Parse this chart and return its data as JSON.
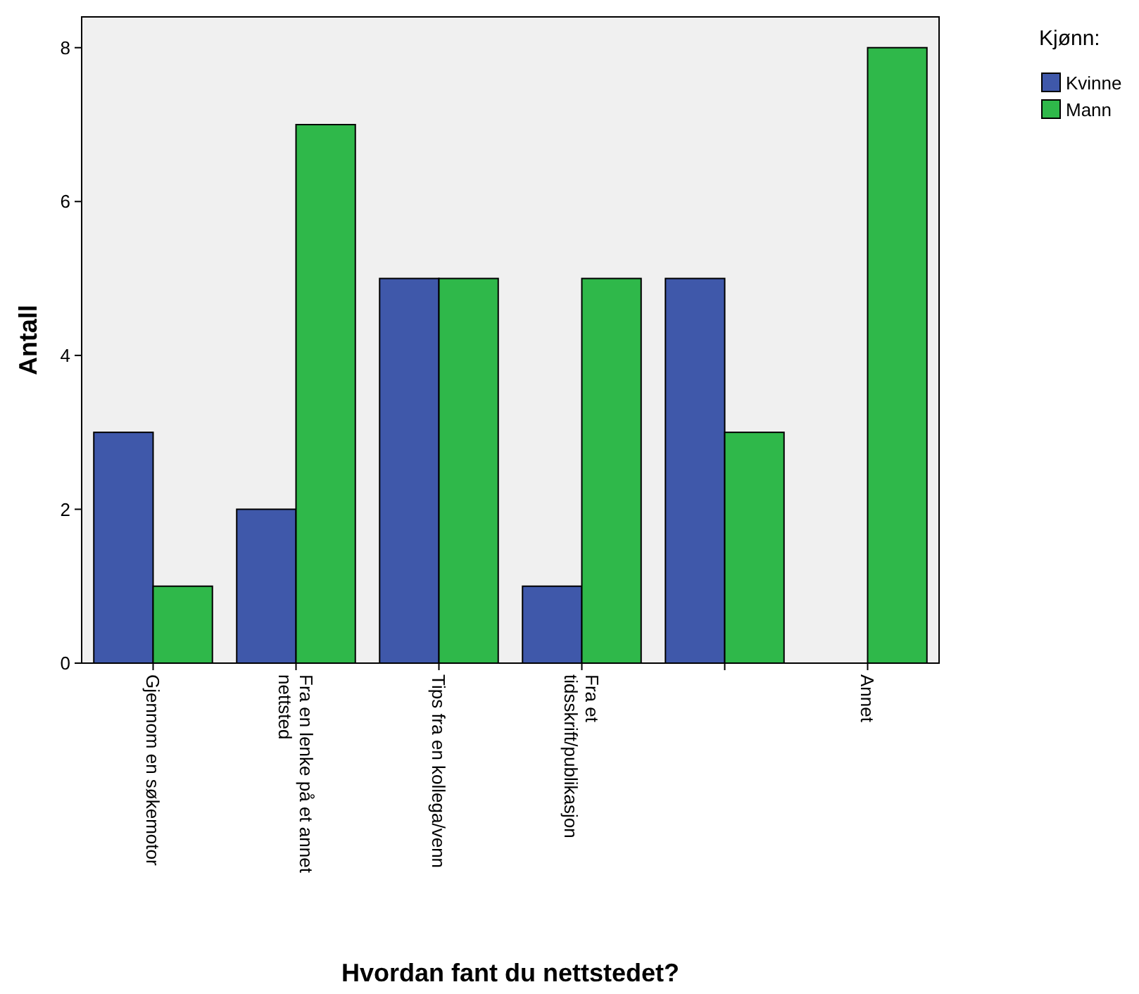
{
  "chart_data": {
    "type": "bar",
    "xlabel": "Hvordan fant du nettstedet?",
    "ylabel": "Antall",
    "legend_title": "Kjønn:",
    "legend": "top right",
    "categories": [
      "Gjennom en søkemotor",
      "Fra en lenke på et annet nettsted",
      "Tips fra en kollega/venn",
      "Fra et tidsskrift/publikasjon",
      null,
      "Annet"
    ],
    "series": [
      {
        "name": "Kvinne",
        "color": "#3f58aa",
        "values": [
          3,
          2,
          5,
          1,
          5,
          null
        ]
      },
      {
        "name": "Mann",
        "color": "#2fb84a",
        "values": [
          1,
          7,
          5,
          5,
          3,
          8
        ]
      }
    ],
    "ylim": [
      0,
      8.4
    ],
    "yticks": [
      0,
      2,
      4,
      6,
      8
    ]
  }
}
